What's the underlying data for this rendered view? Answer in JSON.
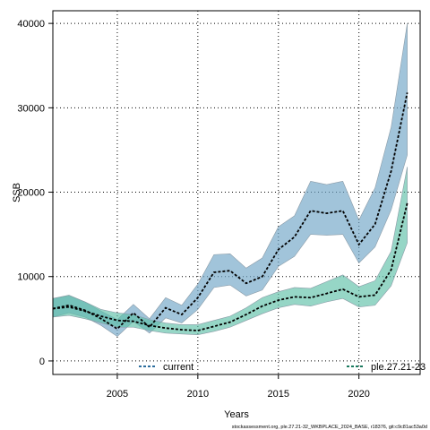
{
  "chart_data": {
    "type": "area",
    "xlabel": "Years",
    "ylabel": "SSB",
    "xlim": [
      2001,
      2023.8
    ],
    "ylim": [
      -1600,
      41500
    ],
    "x_ticks": [
      2005,
      2010,
      2015,
      2020
    ],
    "y_ticks": [
      0,
      10000,
      20000,
      30000,
      40000
    ],
    "grid": true,
    "legend_placement": "bottom",
    "x": [
      2001,
      2002,
      2003,
      2004,
      2005,
      2006,
      2007,
      2008,
      2009,
      2010,
      2011,
      2012,
      2013,
      2014,
      2015,
      2016,
      2017,
      2018,
      2019,
      2020,
      2021,
      2022,
      2023
    ],
    "series": [
      {
        "name": "current",
        "color": "#2e6f9e",
        "fill": "#6fa4c6",
        "values": [
          6200,
          6600,
          6000,
          5000,
          3800,
          5700,
          4000,
          6300,
          5500,
          7500,
          10500,
          10700,
          9200,
          10000,
          13200,
          14700,
          17800,
          17500,
          17800,
          13800,
          16200,
          22500,
          31800
        ],
        "lower": [
          5200,
          5700,
          5200,
          4200,
          2900,
          4700,
          3300,
          5100,
          4500,
          6100,
          8700,
          9000,
          7700,
          8400,
          11200,
          12400,
          15000,
          14900,
          15000,
          11600,
          13500,
          17900,
          24400
        ],
        "upper": [
          7400,
          7700,
          7000,
          5900,
          4900,
          6700,
          5000,
          7500,
          6600,
          9100,
          12600,
          12700,
          11000,
          12200,
          15900,
          17200,
          21300,
          20900,
          21300,
          16700,
          20500,
          27700,
          40000
        ]
      },
      {
        "name": "ple.27.21-23",
        "color": "#1a7a5e",
        "fill": "#5ec0a8",
        "values": [
          6200,
          6400,
          5900,
          5300,
          4800,
          4700,
          4200,
          3900,
          3700,
          3600,
          4100,
          4600,
          5500,
          6500,
          7200,
          7600,
          7500,
          8000,
          8500,
          7600,
          7800,
          10800,
          18700
        ],
        "lower": [
          5200,
          5400,
          5000,
          4500,
          4000,
          4000,
          3600,
          3300,
          3200,
          3100,
          3500,
          4000,
          4800,
          5600,
          6300,
          6700,
          6500,
          7000,
          7400,
          6400,
          6600,
          8900,
          14000
        ],
        "upper": [
          7400,
          7800,
          7000,
          6100,
          5700,
          5500,
          4900,
          4500,
          4300,
          4300,
          4800,
          5300,
          6300,
          7500,
          8200,
          8700,
          8600,
          9400,
          10200,
          8800,
          9500,
          13000,
          23000
        ]
      }
    ]
  },
  "footer_text": "stockassessment.org, ple.27.21-32_WKBPLACE_2024_BASE, r18376, git:c9c81ac53a0d"
}
